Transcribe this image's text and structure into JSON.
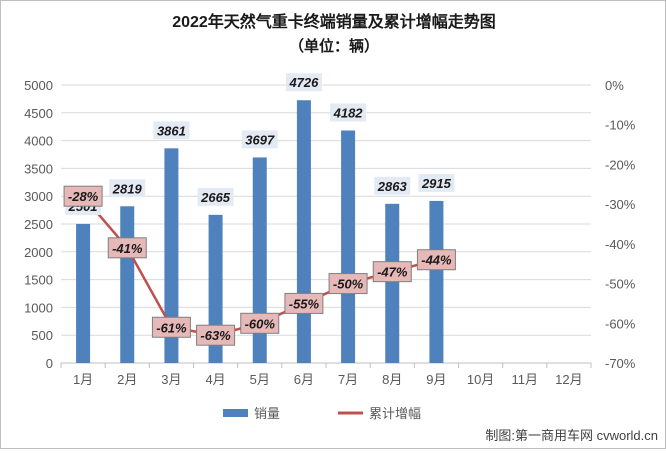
{
  "chart_data": {
    "type": "bar",
    "title": "2022年天然气重卡终端销量及累计增幅走势图",
    "subtitle": "（单位：辆）",
    "categories": [
      "1月",
      "2月",
      "3月",
      "4月",
      "5月",
      "6月",
      "7月",
      "8月",
      "9月",
      "10月",
      "11月",
      "12月"
    ],
    "series": [
      {
        "name": "销量",
        "type": "bar",
        "axis": "left",
        "color": "#4f81bd",
        "values": [
          2501,
          2819,
          3861,
          2665,
          3697,
          4726,
          4182,
          2863,
          2915,
          null,
          null,
          null
        ],
        "value_labels": [
          "2501",
          "2819",
          "3861",
          "2665",
          "3697",
          "4726",
          "4182",
          "2863",
          "2915",
          "",
          "",
          ""
        ]
      },
      {
        "name": "累计增幅",
        "type": "line",
        "axis": "right",
        "color": "#c0504d",
        "values": [
          -28,
          -41,
          -61,
          -63,
          -60,
          -55,
          -50,
          -47,
          -44,
          null,
          null,
          null
        ],
        "value_labels": [
          "-28%",
          "-41%",
          "-61%",
          "-63%",
          "-60%",
          "-55%",
          "-50%",
          "-47%",
          "-44%",
          "",
          "",
          ""
        ]
      }
    ],
    "y_left": {
      "min": 0,
      "max": 5000,
      "ticks": [
        "0",
        "500",
        "1000",
        "1500",
        "2000",
        "2500",
        "3000",
        "3500",
        "4000",
        "4500",
        "5000"
      ]
    },
    "y_right": {
      "min": -70,
      "max": 0,
      "ticks": [
        "0%",
        "-10%",
        "-20%",
        "-30%",
        "-40%",
        "-50%",
        "-60%",
        "-70%"
      ]
    },
    "grid": true,
    "legend": "bottom",
    "source": "制图:第一商用车网 cvworld.cn"
  }
}
